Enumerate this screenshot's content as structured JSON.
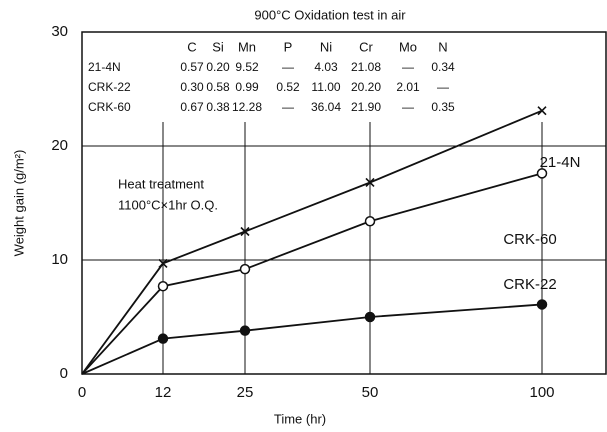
{
  "chart_data": {
    "type": "line",
    "title": "900°C Oxidation test in air",
    "x_label": "Time (hr)",
    "y_label": "Weight gain (g/m²)",
    "categories": [
      "0",
      "12",
      "25",
      "50",
      "100"
    ],
    "ylim": [
      0,
      30
    ],
    "yticks": [
      0,
      10,
      20,
      30
    ],
    "grid": true,
    "series": [
      {
        "name": "21-4N",
        "color": "#111111",
        "marker": "x",
        "values": [
          0,
          9.7,
          12.5,
          16.8,
          23.1
        ]
      },
      {
        "name": "CRK-60",
        "color": "#111111",
        "marker": "open-circle",
        "values": [
          0,
          7.7,
          9.2,
          13.4,
          17.6
        ]
      },
      {
        "name": "CRK-22",
        "color": "#111111",
        "marker": "filled-circle",
        "values": [
          0,
          3.1,
          3.8,
          5.0,
          6.1
        ]
      }
    ],
    "composition_table": {
      "columns": [
        "C",
        "Si",
        "Mn",
        "P",
        "Ni",
        "Cr",
        "Mo",
        "N"
      ],
      "rows": [
        [
          "21-4N",
          "0.57",
          "0.20",
          "9.52",
          "—",
          "4.03",
          "21.08",
          "—",
          "0.34"
        ],
        [
          "CRK-22",
          "0.30",
          "0.58",
          "0.99",
          "0.52",
          "11.00",
          "20.20",
          "2.01",
          "—"
        ],
        [
          "CRK-60",
          "0.67",
          "0.38",
          "12.28",
          "—",
          "36.04",
          "21.90",
          "—",
          "0.35"
        ]
      ]
    },
    "annotations": [
      "Heat treatment",
      "1100°C×1hr O.Q."
    ]
  }
}
